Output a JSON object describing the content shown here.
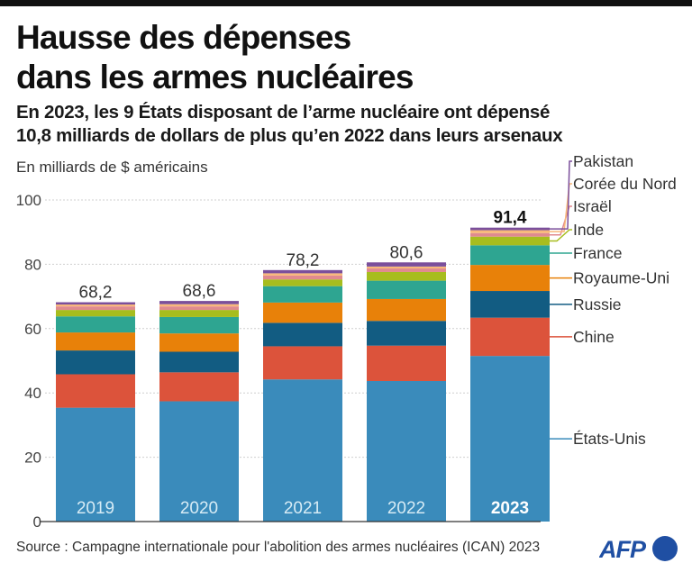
{
  "header": {
    "title_line1": "Hausse des dépenses",
    "title_line2": "dans les armes nucléaires",
    "subtitle_line1": "En 2023, les 9 États disposant de l’arme nucléaire ont dépensé",
    "subtitle_line2": "10,8 milliards de dollars de plus qu’en 2022 dans leurs arsenaux"
  },
  "footer": {
    "source": "Source : Campagne internationale pour l'abolition des armes nucléaires (ICAN) 2023",
    "logo_text": "AFP",
    "logo_color": "#1f4fa3"
  },
  "chart_data": {
    "type": "bar",
    "stacked": true,
    "title": "Hausse des dépenses dans les armes nucléaires",
    "ylabel": "En milliards de $ américains",
    "xlabel": "",
    "ylim": [
      0,
      100
    ],
    "yticks": [
      0,
      20,
      40,
      60,
      80,
      100
    ],
    "ytick_labels": [
      "0",
      "20",
      "40",
      "60",
      "80",
      "100"
    ],
    "grid": true,
    "legend_placement": "right",
    "categories": [
      "2019",
      "2020",
      "2021",
      "2022",
      "2023"
    ],
    "highlight_category": "2023",
    "totals": [
      68.2,
      68.6,
      78.2,
      80.6,
      91.4
    ],
    "total_labels": [
      "68,2",
      "68,6",
      "78,2",
      "80,6",
      "91,4"
    ],
    "series": [
      {
        "name": "États-Unis",
        "color": "#3a8bbb",
        "values": [
          35.4,
          37.4,
          44.2,
          43.7,
          51.5
        ]
      },
      {
        "name": "Chine",
        "color": "#dc533b",
        "values": [
          10.4,
          9.0,
          10.3,
          11.0,
          11.9
        ]
      },
      {
        "name": "Russie",
        "color": "#125c82",
        "values": [
          7.4,
          6.4,
          7.3,
          7.7,
          8.3
        ]
      },
      {
        "name": "Royaume-Uni",
        "color": "#e88109",
        "values": [
          5.6,
          5.7,
          6.3,
          6.8,
          8.1
        ]
      },
      {
        "name": "France",
        "color": "#2ea591",
        "values": [
          5.0,
          5.1,
          5.1,
          5.7,
          6.1
        ]
      },
      {
        "name": "Inde",
        "color": "#a7bd1e",
        "values": [
          2.0,
          2.2,
          2.1,
          2.7,
          2.7
        ]
      },
      {
        "name": "Israël",
        "color": "#e08a8f",
        "values": [
          1.1,
          1.1,
          1.2,
          1.1,
          1.1
        ]
      },
      {
        "name": "Corée du Nord",
        "color": "#f8b87a",
        "values": [
          0.6,
          0.7,
          0.7,
          0.6,
          0.9
        ]
      },
      {
        "name": "Pakistan",
        "color": "#7b4f9b",
        "values": [
          0.7,
          1.0,
          1.0,
          1.3,
          0.8
        ]
      }
    ]
  }
}
